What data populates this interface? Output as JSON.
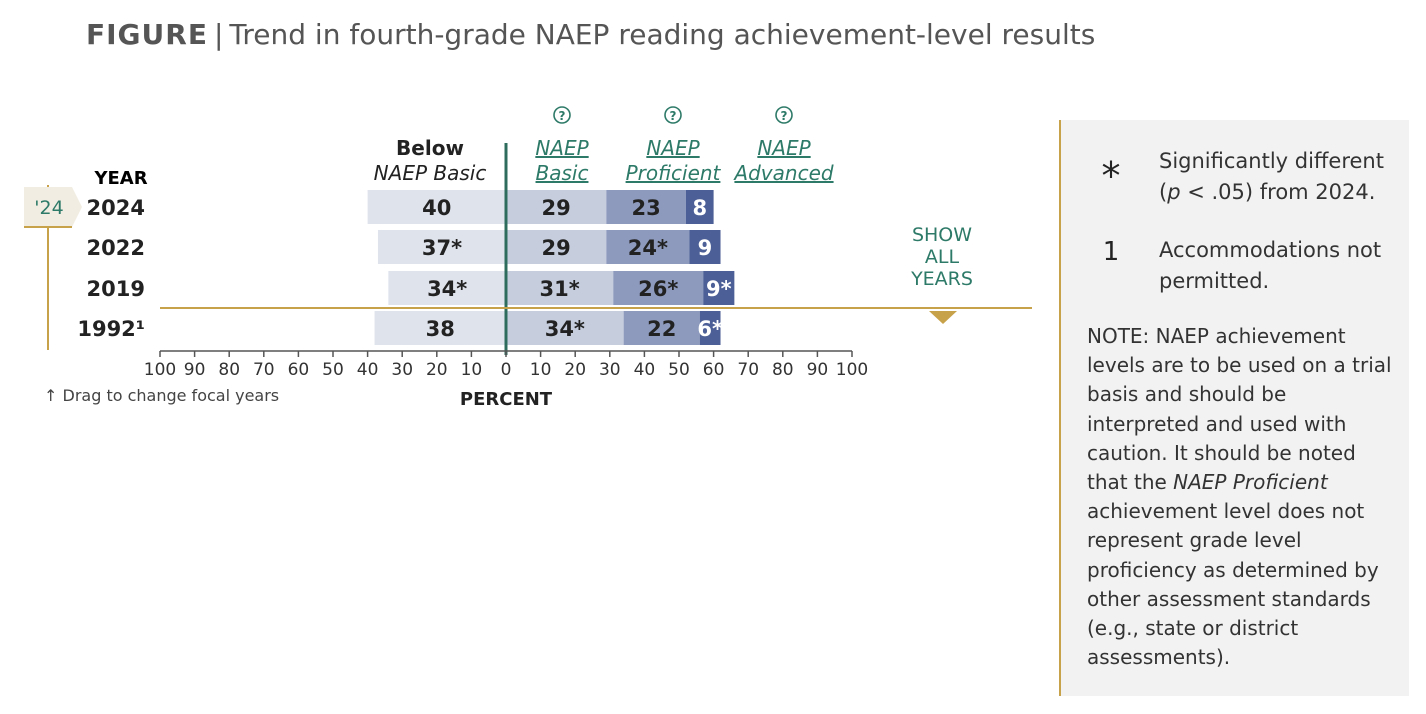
{
  "title": {
    "figure_label": "FIGURE",
    "separator": "|",
    "text": "Trend in fourth-grade NAEP reading achievement-level results"
  },
  "colors": {
    "below_basic": "#dfe3ec",
    "basic": "#c6cedd",
    "proficient": "#8d9abd",
    "advanced": "#4c5f96",
    "zero_line": "#2e6d5e",
    "accent_gold": "#c8a24a",
    "teal_text": "#2e7a68"
  },
  "chart_data": {
    "type": "bar",
    "subtype": "diverging-stacked-bar",
    "year_header": "YEAR",
    "categories": [
      "2024",
      "2022",
      "2019",
      "1992¹"
    ],
    "series": [
      {
        "name": "Below NAEP Basic",
        "values": [
          40,
          37,
          34,
          38
        ],
        "labels": [
          "40",
          "37*",
          "34*",
          "38"
        ],
        "direction": "left"
      },
      {
        "name": "NAEP Basic",
        "values": [
          29,
          29,
          31,
          34
        ],
        "labels": [
          "29",
          "29",
          "31*",
          "34*"
        ],
        "direction": "right"
      },
      {
        "name": "NAEP Proficient",
        "values": [
          23,
          24,
          26,
          22
        ],
        "labels": [
          "23",
          "24*",
          "26*",
          "22"
        ],
        "direction": "right"
      },
      {
        "name": "NAEP Advanced",
        "values": [
          8,
          9,
          9,
          6
        ],
        "labels": [
          "8",
          "9",
          "9*",
          "6*"
        ],
        "direction": "right"
      }
    ],
    "column_headers": {
      "below_line1": "Below",
      "below_line2": "NAEP Basic",
      "basic_line1": "NAEP",
      "basic_line2": "Basic",
      "proficient_line1": "NAEP",
      "proficient_line2": "Proficient",
      "advanced_line1": "NAEP",
      "advanced_line2": "Advanced",
      "help_icon": "?"
    },
    "xlabel": "PERCENT",
    "xlim": [
      -100,
      100
    ],
    "x_ticks": [
      "100",
      "90",
      "80",
      "70",
      "60",
      "50",
      "40",
      "30",
      "20",
      "10",
      "0",
      "10",
      "20",
      "30",
      "40",
      "50",
      "60",
      "70",
      "80",
      "90",
      "100"
    ],
    "focal_year_tab": "'24",
    "show_all_years": [
      "SHOW",
      "ALL",
      "YEARS"
    ],
    "drag_hint": "↑ Drag to change focal years"
  },
  "legend": {
    "items": [
      {
        "symbol": "*",
        "text_html": "Significantly different (<i>p</i> &lt; .05) from 2024."
      },
      {
        "symbol": "1",
        "text_html": "Accommodations not permitted."
      }
    ],
    "note_html": "NOTE: NAEP achievement levels are to be used on a trial basis and should be interpreted and used with caution. It should be noted that the <i>NAEP Proficient</i> achievement level does not represent grade level proficiency as determined by other assessment standards (e.g., state or district assessments)."
  }
}
